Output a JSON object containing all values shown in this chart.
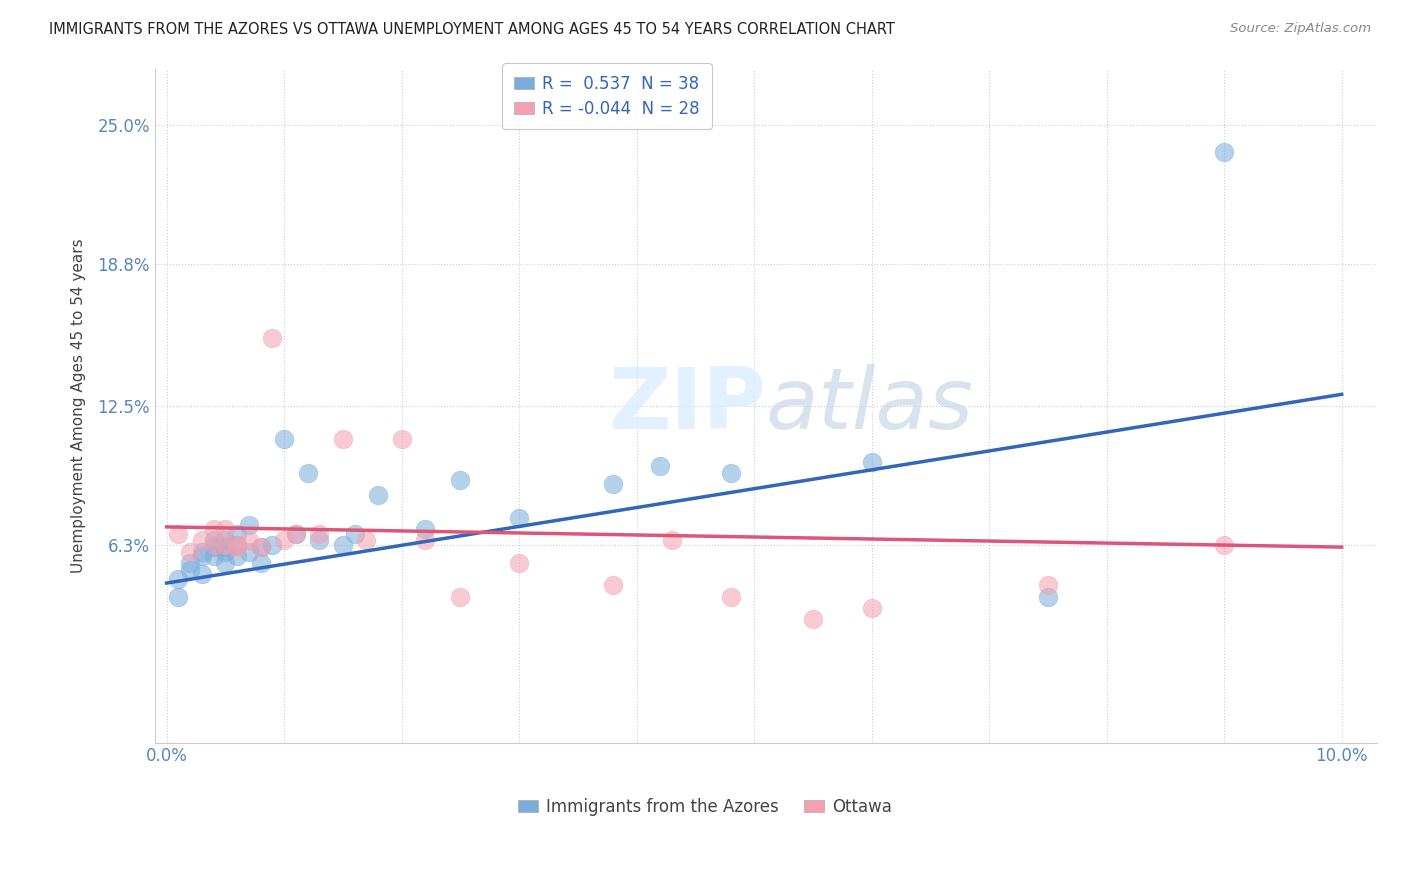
{
  "title": "IMMIGRANTS FROM THE AZORES VS OTTAWA UNEMPLOYMENT AMONG AGES 45 TO 54 YEARS CORRELATION CHART",
  "source": "Source: ZipAtlas.com",
  "ylabel": "Unemployment Among Ages 45 to 54 years",
  "xlim": [
    -0.001,
    0.103
  ],
  "ylim": [
    -0.025,
    0.275
  ],
  "yticks": [
    0.063,
    0.125,
    0.188,
    0.25
  ],
  "ytick_labels": [
    "6.3%",
    "12.5%",
    "18.8%",
    "25.0%"
  ],
  "xticks": [
    0.0,
    0.01,
    0.02,
    0.03,
    0.04,
    0.05,
    0.06,
    0.07,
    0.08,
    0.09,
    0.1
  ],
  "xtick_labels": [
    "0.0%",
    "",
    "",
    "",
    "",
    "",
    "",
    "",
    "",
    "",
    "10.0%"
  ],
  "series1_color": "#7aaddb",
  "series2_color": "#f4a0b0",
  "trendline1_color": "#3366bb",
  "trendline2_color": "#dd5577",
  "watermark_color": "#e0eaf4",
  "scatter1_x": [
    0.001,
    0.001,
    0.002,
    0.002,
    0.003,
    0.003,
    0.003,
    0.004,
    0.004,
    0.004,
    0.005,
    0.005,
    0.005,
    0.005,
    0.006,
    0.006,
    0.006,
    0.007,
    0.007,
    0.008,
    0.008,
    0.009,
    0.01,
    0.011,
    0.012,
    0.013,
    0.015,
    0.016,
    0.018,
    0.022,
    0.025,
    0.03,
    0.038,
    0.042,
    0.048,
    0.06,
    0.075,
    0.09
  ],
  "scatter1_y": [
    0.04,
    0.048,
    0.052,
    0.055,
    0.058,
    0.06,
    0.05,
    0.062,
    0.058,
    0.065,
    0.062,
    0.065,
    0.06,
    0.055,
    0.068,
    0.063,
    0.058,
    0.072,
    0.06,
    0.062,
    0.055,
    0.063,
    0.11,
    0.068,
    0.095,
    0.065,
    0.063,
    0.068,
    0.085,
    0.07,
    0.092,
    0.075,
    0.09,
    0.098,
    0.095,
    0.1,
    0.04,
    0.238
  ],
  "scatter2_x": [
    0.001,
    0.002,
    0.003,
    0.004,
    0.004,
    0.005,
    0.005,
    0.006,
    0.006,
    0.007,
    0.008,
    0.009,
    0.01,
    0.011,
    0.013,
    0.015,
    0.017,
    0.02,
    0.022,
    0.025,
    0.03,
    0.038,
    0.043,
    0.048,
    0.055,
    0.06,
    0.075,
    0.09
  ],
  "scatter2_y": [
    0.068,
    0.06,
    0.065,
    0.063,
    0.07,
    0.063,
    0.07,
    0.062,
    0.063,
    0.065,
    0.062,
    0.155,
    0.065,
    0.068,
    0.068,
    0.11,
    0.065,
    0.11,
    0.065,
    0.04,
    0.055,
    0.045,
    0.065,
    0.04,
    0.03,
    0.035,
    0.045,
    0.063
  ],
  "trendline1_x": [
    0.0,
    0.1
  ],
  "trendline1_y": [
    0.046,
    0.13
  ],
  "trendline2_x": [
    0.0,
    0.1
  ],
  "trendline2_y": [
    0.071,
    0.062
  ]
}
